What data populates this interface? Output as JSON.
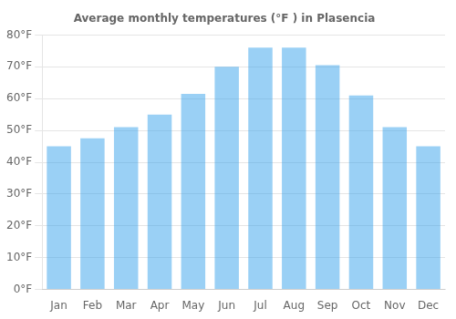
{
  "chart_data": {
    "type": "bar",
    "title": "Average monthly temperatures (°F ) in Plasencia",
    "categories": [
      "Jan",
      "Feb",
      "Mar",
      "Apr",
      "May",
      "Jun",
      "Jul",
      "Aug",
      "Sep",
      "Oct",
      "Nov",
      "Dec"
    ],
    "values": [
      45,
      47.5,
      51,
      55,
      61.5,
      70,
      76,
      76,
      70.5,
      61,
      51,
      45
    ],
    "ylim": [
      0,
      80
    ],
    "yticks": [
      {
        "value": 0,
        "label": "0°F"
      },
      {
        "value": 10,
        "label": "10°F"
      },
      {
        "value": 20,
        "label": "20°F"
      },
      {
        "value": 30,
        "label": "30°F"
      },
      {
        "value": 40,
        "label": "40°F"
      },
      {
        "value": 50,
        "label": "50°F"
      },
      {
        "value": 60,
        "label": "60°F"
      },
      {
        "value": 70,
        "label": "70°F"
      },
      {
        "value": 80,
        "label": "80°F"
      }
    ],
    "grid": true
  }
}
